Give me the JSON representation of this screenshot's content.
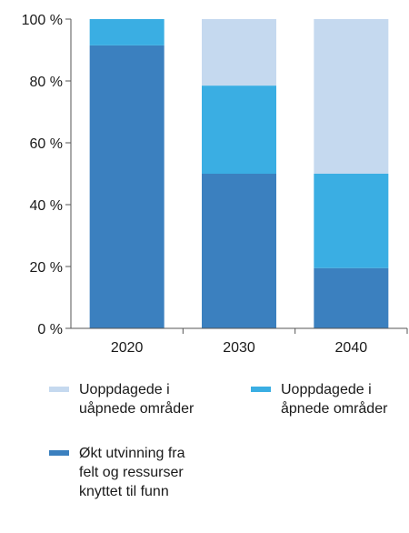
{
  "chart_data": {
    "type": "bar",
    "stacked": true,
    "categories": [
      "2020",
      "2030",
      "2040"
    ],
    "y_ticks": [
      "0 %",
      "20 %",
      "40 %",
      "60 %",
      "80 %",
      "100 %"
    ],
    "ylim": [
      0,
      100
    ],
    "grid": false,
    "legend_position": "bottom",
    "series": [
      {
        "name": "Økt utvinning fra felt og ressurser knyttet til funn",
        "color": "#3b80bf",
        "values": [
          91.5,
          50,
          19.5
        ]
      },
      {
        "name": "Uoppdagede i åpnede områder",
        "color": "#3aaee3",
        "values": [
          8.5,
          28.5,
          30.5
        ]
      },
      {
        "name": "Uoppdagede i uåpnede områder",
        "color": "#c5d9ef",
        "values": [
          0,
          21.5,
          50
        ]
      }
    ]
  },
  "legend": [
    {
      "series_index": 2,
      "lines": [
        "Uoppdagede i",
        "uåpnede områder"
      ]
    },
    {
      "series_index": 1,
      "lines": [
        "Uoppdagede i",
        "åpnede områder"
      ]
    },
    {
      "series_index": 0,
      "lines": [
        "Økt utvinning fra",
        "felt og ressurser",
        "knyttet til funn"
      ]
    }
  ]
}
